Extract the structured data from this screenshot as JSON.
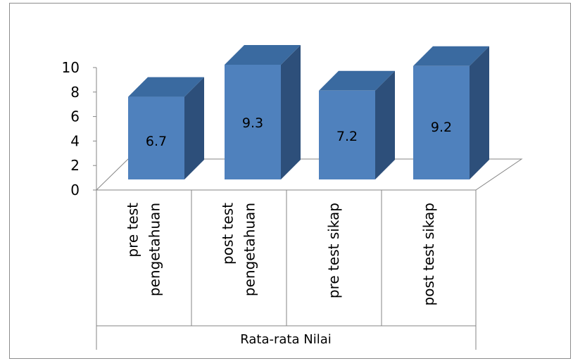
{
  "chart_data": {
    "type": "bar",
    "style": "3d-column",
    "categories": [
      "pre test\npengetahuan",
      "post test\npengetahuan",
      "pre test sikap",
      "post test sikap"
    ],
    "values": [
      6.7,
      9.3,
      7.2,
      9.2
    ],
    "group_label": "Rata-rata Nilai",
    "ylim": [
      0,
      10
    ],
    "yticks": [
      0,
      2,
      4,
      6,
      8,
      10
    ],
    "data_labels": [
      "6.7",
      "9.3",
      "7.2",
      "9.2"
    ],
    "legend": "none",
    "gridlines": false,
    "colors": {
      "front": "#4f81bd",
      "top": "#3a6aa0",
      "side": "#2d4f7a",
      "axis": "#868686"
    }
  }
}
